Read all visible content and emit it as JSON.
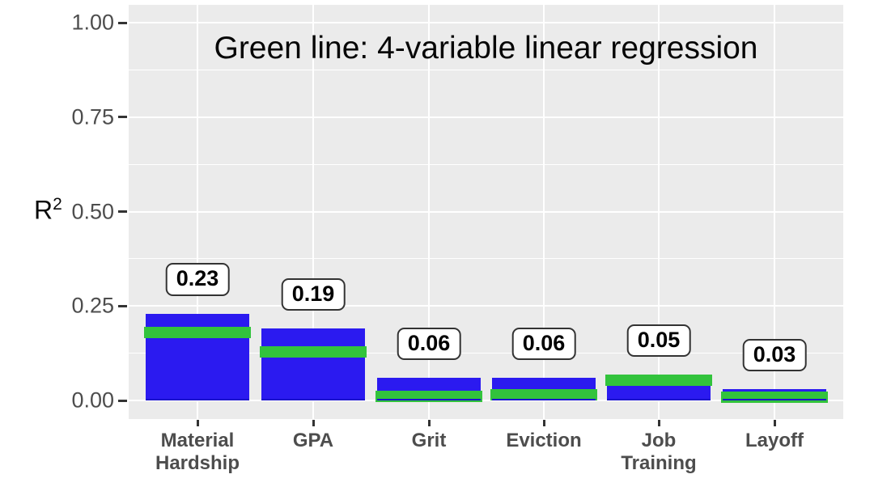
{
  "figure": {
    "title": "Green line: 4-variable linear regression",
    "y_axis": {
      "label_base": "R",
      "label_exponent": "2",
      "tick_labels": [
        "1.00",
        "0.75",
        "0.50",
        "0.25",
        "0.00"
      ]
    }
  },
  "chart_data": {
    "type": "bar",
    "title": "Green line: 4-variable linear regression",
    "ylabel": "R^2",
    "xlabel": "",
    "ylim": [
      0,
      1
    ],
    "ytick_values": [
      1.0,
      0.75,
      0.5,
      0.25,
      0.0
    ],
    "ytick_labels": [
      "1.00",
      "0.75",
      "0.50",
      "0.25",
      "0.00"
    ],
    "grid": "major+minor white on gray panel",
    "legend_position": "none (green line explained in title annotation)",
    "categories": [
      "Material Hardship",
      "GPA",
      "Grit",
      "Eviction",
      "Job Training",
      "Layoff"
    ],
    "category_lines": [
      [
        "Material",
        "Hardship"
      ],
      [
        "GPA"
      ],
      [
        "Grit"
      ],
      [
        "Eviction"
      ],
      [
        "Job",
        "Training"
      ],
      [
        "Layoff"
      ]
    ],
    "series": [
      {
        "name": "bars",
        "values": [
          0.23,
          0.19,
          0.06,
          0.06,
          0.05,
          0.03
        ]
      },
      {
        "name": "green line: 4-variable linear regression",
        "values": [
          0.179,
          0.129,
          0.011,
          0.014,
          0.053,
          0.008
        ]
      }
    ],
    "bar_value_labels": [
      "0.23",
      "0.19",
      "0.06",
      "0.06",
      "0.05",
      "0.03"
    ],
    "colors": {
      "bar_fill": "#2b1af0",
      "bar_edge": "#1a12cc",
      "green_line": "#32c33c",
      "panel_background": "#ebebeb",
      "gridline": "#ffffff",
      "axis_text": "#4d4d4d",
      "tick_mark": "#333333",
      "value_label_text": "#000000",
      "value_label_border": "#333333",
      "value_label_background": "#ffffff"
    }
  }
}
